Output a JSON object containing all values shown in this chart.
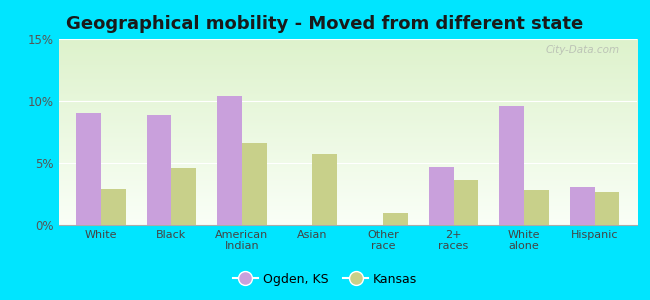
{
  "title": "Geographical mobility - Moved from different state",
  "categories": [
    "White",
    "Black",
    "American\nIndian",
    "Asian",
    "Other\nrace",
    "2+\nraces",
    "White\nalone",
    "Hispanic"
  ],
  "ogden_values": [
    9.0,
    8.9,
    10.4,
    0.0,
    0.0,
    4.7,
    9.6,
    3.1
  ],
  "kansas_values": [
    2.9,
    4.6,
    6.6,
    5.7,
    1.0,
    3.6,
    2.8,
    2.7
  ],
  "ogden_color": "#c9a0dc",
  "kansas_color": "#c8d08a",
  "ylim": [
    0,
    15
  ],
  "yticks": [
    0,
    5,
    10,
    15
  ],
  "ytick_labels": [
    "0%",
    "5%",
    "10%",
    "15%"
  ],
  "background_outer": "#00e5ff",
  "legend_ogden": "Ogden, KS",
  "legend_kansas": "Kansas",
  "watermark": "City-Data.com",
  "bar_width": 0.35,
  "title_fontsize": 13
}
